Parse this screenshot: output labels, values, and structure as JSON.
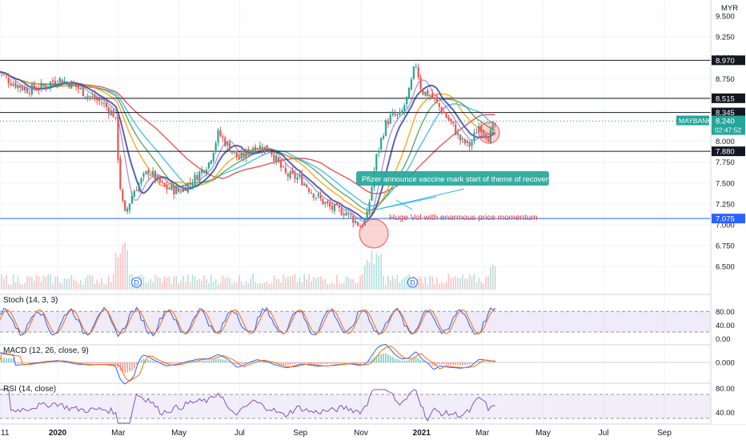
{
  "chart_data": {
    "type": "candlestick",
    "symbol": "MAYBANK",
    "currency": "MYR",
    "last_price": "8.240",
    "countdown": "02:47:52",
    "main_pane": {
      "y_axis_ticks": [
        "9.500",
        "9.250",
        "9.000",
        "8.750",
        "8.500",
        "8.250",
        "8.000",
        "7.750",
        "7.500",
        "7.250",
        "7.000",
        "6.750",
        "6.500"
      ],
      "ylim": [
        6.45,
        9.55
      ],
      "price_levels": [
        {
          "label": "8.970",
          "value": 8.97,
          "color": "#131722"
        },
        {
          "label": "8.515",
          "value": 8.515,
          "color": "#131722"
        },
        {
          "label": "8.345",
          "value": 8.345,
          "color": "#131722"
        },
        {
          "label": "7.880",
          "value": 7.88,
          "color": "#131722"
        },
        {
          "label": "7.075",
          "value": 7.075,
          "color": "#2962ff"
        }
      ],
      "annotations": [
        {
          "text": "Pfizer announce vaccine mark start of theme of recovery trend",
          "style": "callout",
          "color": "#26a69a"
        },
        {
          "text": "Huge Vol with enormous price momentum",
          "style": "text",
          "color": "#e53935"
        }
      ],
      "dividend_markers": [
        "D",
        "D"
      ],
      "moving_average_colors": [
        "#e53935",
        "#29b6f6",
        "#43a047",
        "#ff9800",
        "#7e57c2",
        "#3949ab"
      ],
      "x_range_months": [
        -2,
        15
      ]
    },
    "x_axis_labels": [
      {
        "text": "11",
        "m": -1.9
      },
      {
        "text": "2020",
        "m": 0
      },
      {
        "text": "Mar",
        "m": 2
      },
      {
        "text": "May",
        "m": 4
      },
      {
        "text": "Jul",
        "m": 6
      },
      {
        "text": "Sep",
        "m": 8
      },
      {
        "text": "Nov",
        "m": 10
      },
      {
        "text": "2021",
        "m": 12
      },
      {
        "text": "Mar",
        "m": 14
      },
      {
        "text": "May",
        "m": 16
      },
      {
        "text": "Jul",
        "m": 18
      },
      {
        "text": "Sep",
        "m": 20
      }
    ],
    "stoch": {
      "title": "Stoch (14, 3, 3)",
      "ticks": [
        "80.00",
        "40.00",
        "0.00"
      ],
      "band": [
        20,
        80
      ]
    },
    "macd": {
      "title": "MACD (12, 26, close, 9)",
      "ticks": [
        "0.000"
      ]
    },
    "rsi": {
      "title": "RSI (14, close)",
      "ticks": [
        "80.00",
        "40.00"
      ],
      "band": [
        30,
        70
      ]
    }
  }
}
